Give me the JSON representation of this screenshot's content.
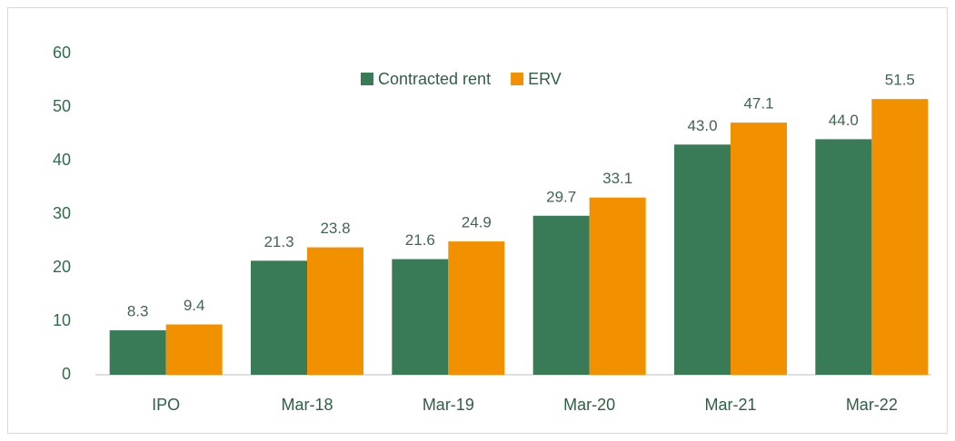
{
  "chart_data": {
    "type": "bar",
    "categories": [
      "IPO",
      "Mar-18",
      "Mar-19",
      "Mar-20",
      "Mar-21",
      "Mar-22"
    ],
    "series": [
      {
        "name": "Contracted rent",
        "color": "#3a7b57",
        "values": [
          8.3,
          21.3,
          21.6,
          29.7,
          43,
          44
        ],
        "value_labels": [
          "8.3",
          "21.3",
          "21.6",
          "29.7",
          "43.0",
          "44.0"
        ]
      },
      {
        "name": "ERV",
        "color": "#f29100",
        "values": [
          9.4,
          23.8,
          24.9,
          33.1,
          47.1,
          51.5
        ],
        "value_labels": [
          "9.4",
          "23.8",
          "24.9",
          "33.1",
          "47.1",
          "51.5"
        ]
      }
    ],
    "ylim": [
      0,
      60
    ],
    "yticks": [
      0,
      10,
      20,
      30,
      40,
      50,
      60
    ],
    "grid": false,
    "legend": "top"
  }
}
